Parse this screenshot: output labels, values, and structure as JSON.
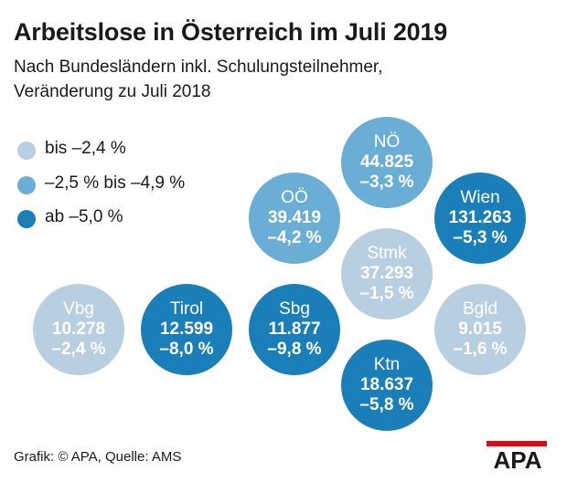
{
  "colors": {
    "light": "#b8cfe2",
    "medium": "#6aaed6",
    "dark": "#1a7fb8",
    "logo_red": "#e30613",
    "logo_black": "#1a1a1a"
  },
  "chart_data": {
    "type": "bubble-map",
    "title": "Arbeitslose in Österreich im Juli 2019",
    "subtitle_line1": "Nach Bundesländern inkl. Schulungsteilnehmer,",
    "subtitle_line2": "Veränderung zu Juli 2018",
    "legend": [
      {
        "label": "bis –2,4 %",
        "category": "light"
      },
      {
        "label": "–2,5 % bis –4,9 %",
        "category": "medium"
      },
      {
        "label": "ab –5,0 %",
        "category": "dark"
      }
    ],
    "regions": [
      {
        "name": "NÖ",
        "value": "44.825",
        "change": "–3,3 %",
        "category": "medium"
      },
      {
        "name": "OÖ",
        "value": "39.419",
        "change": "–4,2 %",
        "category": "medium"
      },
      {
        "name": "Wien",
        "value": "131.263",
        "change": "–5,3 %",
        "category": "dark"
      },
      {
        "name": "Stmk",
        "value": "37.293",
        "change": "–1,5 %",
        "category": "light"
      },
      {
        "name": "Vbg",
        "value": "10.278",
        "change": "–2,4 %",
        "category": "light"
      },
      {
        "name": "Tirol",
        "value": "12.599",
        "change": "–8,0 %",
        "category": "dark"
      },
      {
        "name": "Sbg",
        "value": "11.877",
        "change": "–9,8 %",
        "category": "dark"
      },
      {
        "name": "Bgld",
        "value": "9.015",
        "change": "–1,6 %",
        "category": "light"
      },
      {
        "name": "Ktn",
        "value": "18.637",
        "change": "–5,8 %",
        "category": "dark"
      }
    ]
  },
  "footer": {
    "source": "Grafik: © APA, Quelle: AMS",
    "logo_text": "APA"
  }
}
